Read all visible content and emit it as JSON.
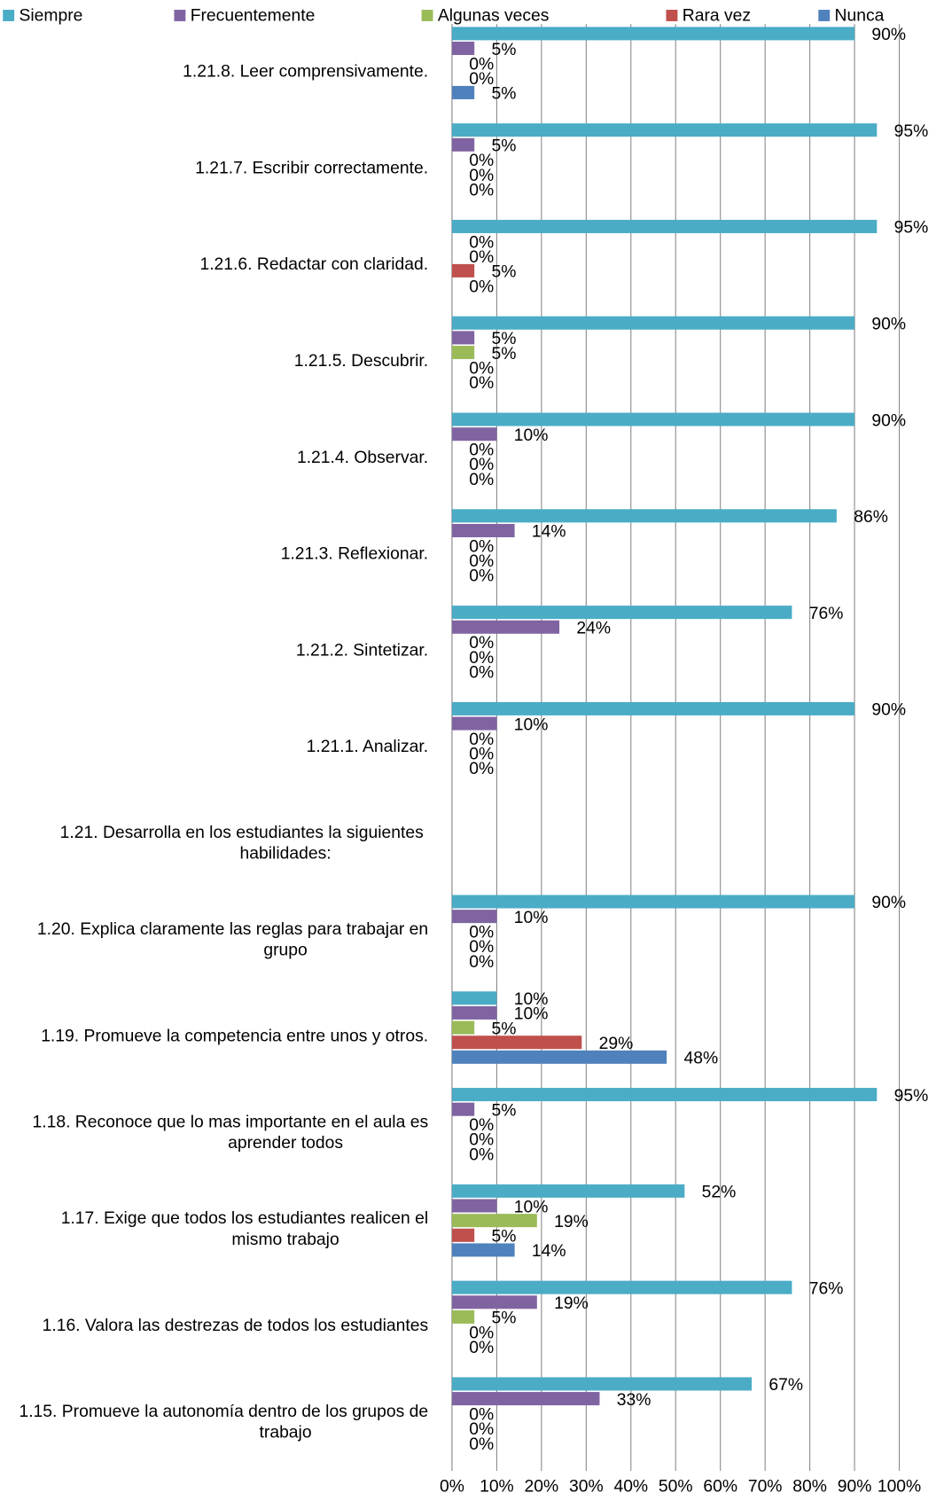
{
  "chart_data": {
    "type": "bar",
    "orientation": "horizontal",
    "categories": [
      "1.21.8.   Leer comprensivamente.",
      "1.21.7.   Escribir correctamente.",
      "1.21.6.   Redactar con claridad.",
      "1.21.5.   Descubrir.",
      "1.21.4.   Observar.",
      "1.21.3.   Reflexionar.",
      "1.21.2.   Sintetizar.",
      "1.21.1.   Analizar.",
      "1.21.  Desarrolla en los estudiantes la siguientes  habilidades:",
      "1.20.   Explica claramente las reglas para trabajar en grupo",
      "1.19.   Promueve la competencia entre unos y otros.",
      "1.18.  Reconoce que lo mas importante en el aula es aprender todos",
      "1.17.   Exige que todos los estudiantes realicen el mismo trabajo",
      "1.16.   Valora las destrezas de todos los estudiantes",
      "1.15.   Promueve la autonomía dentro de los grupos de trabajo"
    ],
    "series": [
      {
        "name": "Siempre",
        "color": "#4bacc6",
        "values": [
          90,
          95,
          95,
          90,
          90,
          86,
          76,
          90,
          null,
          90,
          10,
          95,
          52,
          76,
          67
        ],
        "value_labels": [
          "90%",
          "95%",
          "95%",
          "90%",
          "90%",
          "86%",
          "76%",
          "90%",
          null,
          "90%",
          "10%",
          "95%",
          "52%",
          "76%",
          "67%"
        ]
      },
      {
        "name": "Frecuentemente",
        "color": "#8064a2",
        "values": [
          5,
          5,
          0,
          5,
          10,
          14,
          24,
          10,
          null,
          10,
          10,
          5,
          10,
          19,
          33
        ],
        "value_labels": [
          "5%",
          "5%",
          "0%",
          "5%",
          "10%",
          "14%",
          "24%",
          "10%",
          null,
          "10%",
          "10%",
          "5%",
          "10%",
          "19%",
          "33%"
        ]
      },
      {
        "name": "Algunas veces",
        "color": "#9bbb59",
        "values": [
          0,
          0,
          0,
          5,
          0,
          0,
          0,
          0,
          null,
          0,
          5,
          0,
          19,
          5,
          0
        ],
        "value_labels": [
          "0%",
          "0%",
          "0%",
          "5%",
          "0%",
          "0%",
          "0%",
          "0%",
          null,
          "0%",
          "5%",
          "0%",
          "19%",
          "5%",
          "0%"
        ]
      },
      {
        "name": "Rara vez",
        "color": "#c0504d",
        "values": [
          0,
          0,
          5,
          0,
          0,
          0,
          0,
          0,
          null,
          0,
          29,
          0,
          5,
          0,
          0
        ],
        "value_labels": [
          "0%",
          "0%",
          "5%",
          "0%",
          "0%",
          "0%",
          "0%",
          "0%",
          null,
          "0%",
          "29%",
          "0%",
          "5%",
          "0%",
          "0%"
        ]
      },
      {
        "name": "Nunca",
        "color": "#4f81bd",
        "values": [
          5,
          0,
          0,
          0,
          0,
          0,
          0,
          0,
          null,
          0,
          48,
          0,
          14,
          0,
          0
        ],
        "value_labels": [
          "5%",
          "0%",
          "0%",
          "0%",
          "0%",
          "0%",
          "0%",
          "0%",
          null,
          "0%",
          "48%",
          "0%",
          "14%",
          "0%",
          "0%"
        ]
      }
    ],
    "xlim": [
      0,
      100
    ],
    "xticks": [
      {
        "value": 0,
        "label": "0%"
      },
      {
        "value": 10,
        "label": "10%"
      },
      {
        "value": 20,
        "label": "20%"
      },
      {
        "value": 30,
        "label": "30%"
      },
      {
        "value": 40,
        "label": "40%"
      },
      {
        "value": 50,
        "label": "50%"
      },
      {
        "value": 60,
        "label": "60%"
      },
      {
        "value": 70,
        "label": "70%"
      },
      {
        "value": 80,
        "label": "80%"
      },
      {
        "value": 90,
        "label": "90%"
      },
      {
        "value": 100,
        "label": "100%"
      }
    ],
    "grid": true,
    "legend": "top"
  }
}
